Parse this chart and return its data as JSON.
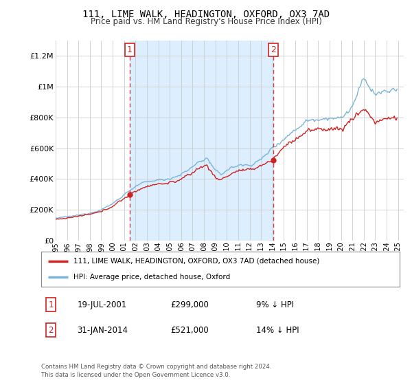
{
  "title": "111, LIME WALK, HEADINGTON, OXFORD, OX3 7AD",
  "subtitle": "Price paid vs. HM Land Registry's House Price Index (HPI)",
  "bg_color": "#ffffff",
  "plot_bg_color": "#ffffff",
  "shade_color": "#ddeeff",
  "legend_line1": "111, LIME WALK, HEADINGTON, OXFORD, OX3 7AD (detached house)",
  "legend_line2": "HPI: Average price, detached house, Oxford",
  "annotation1_label": "1",
  "annotation1_date": "19-JUL-2001",
  "annotation1_price": "£299,000",
  "annotation1_hpi": "9% ↓ HPI",
  "annotation2_label": "2",
  "annotation2_date": "31-JAN-2014",
  "annotation2_price": "£521,000",
  "annotation2_hpi": "14% ↓ HPI",
  "footer": "Contains HM Land Registry data © Crown copyright and database right 2024.\nThis data is licensed under the Open Government Licence v3.0.",
  "hpi_color": "#7ab4d8",
  "price_color": "#cc2222",
  "vline_color": "#cc2222",
  "ylim": [
    0,
    1300000
  ],
  "yticks": [
    0,
    200000,
    400000,
    600000,
    800000,
    1000000,
    1200000
  ],
  "ytick_labels": [
    "£0",
    "£200K",
    "£400K",
    "£600K",
    "£800K",
    "£1M",
    "£1.2M"
  ],
  "year_start": 1995,
  "year_end": 2025,
  "sale1_t": 2001.5,
  "sale1_price": 299000,
  "sale2_t": 2014.08,
  "sale2_price": 521000
}
